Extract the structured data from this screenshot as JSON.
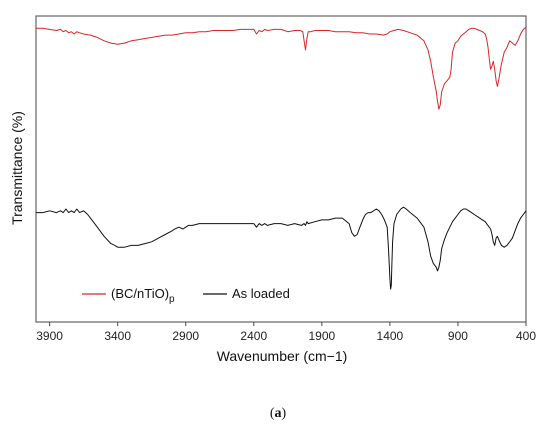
{
  "chart_data": {
    "type": "line",
    "xlabel": "Wavenumber (cm−1)",
    "ylabel": "Transmittance (%)",
    "xlim": [
      4000,
      400
    ],
    "x_reversed": true,
    "xticks": [
      3900,
      3400,
      2900,
      2400,
      1900,
      1400,
      900,
      400
    ],
    "y_ticks_shown": false,
    "legend_position": "bottom-left",
    "caption_letter": "a",
    "series": [
      {
        "name": "(BC/nTiO)p",
        "name_main": "(BC/nTiO)",
        "name_sub": "p",
        "color": "#d62728",
        "x": [
          4000,
          3950,
          3900,
          3850,
          3820,
          3800,
          3780,
          3760,
          3740,
          3720,
          3700,
          3680,
          3650,
          3600,
          3550,
          3500,
          3450,
          3400,
          3350,
          3300,
          3250,
          3200,
          3150,
          3100,
          3050,
          3000,
          2950,
          2900,
          2850,
          2800,
          2750,
          2700,
          2650,
          2600,
          2550,
          2500,
          2450,
          2400,
          2380,
          2360,
          2340,
          2320,
          2300,
          2250,
          2200,
          2150,
          2100,
          2060,
          2040,
          2030,
          2020,
          2010,
          2000,
          1980,
          1950,
          1900,
          1850,
          1800,
          1750,
          1700,
          1650,
          1600,
          1550,
          1500,
          1450,
          1420,
          1400,
          1370,
          1340,
          1300,
          1250,
          1200,
          1150,
          1120,
          1100,
          1080,
          1060,
          1050,
          1040,
          1030,
          1020,
          1000,
          980,
          960,
          950,
          940,
          920,
          900,
          880,
          860,
          840,
          820,
          800,
          780,
          760,
          740,
          720,
          700,
          690,
          680,
          670,
          660,
          650,
          640,
          630,
          620,
          610,
          600,
          580,
          560,
          540,
          520,
          500,
          480,
          460,
          440,
          420,
          400
        ],
        "y": [
          91,
          91,
          90,
          89,
          90,
          88,
          89,
          87,
          88,
          86,
          88,
          87,
          86,
          85,
          83,
          80,
          78,
          77,
          78,
          80,
          81,
          82,
          83,
          84,
          85,
          85,
          86,
          87,
          87,
          88,
          88,
          89,
          89,
          89,
          89,
          90,
          90,
          90,
          86,
          89,
          88,
          90,
          89,
          90,
          90,
          88,
          89,
          89,
          88,
          80,
          72,
          82,
          88,
          88,
          89,
          89,
          89,
          88,
          88,
          88,
          87,
          87,
          86,
          86,
          85,
          86,
          88,
          89,
          90,
          89,
          87,
          85,
          80,
          72,
          62,
          48,
          36,
          27,
          20,
          24,
          35,
          42,
          45,
          48,
          55,
          70,
          78,
          80,
          84,
          86,
          88,
          90,
          91,
          91,
          90,
          89,
          88,
          86,
          82,
          75,
          64,
          55,
          58,
          62,
          55,
          45,
          40,
          46,
          60,
          70,
          74,
          80,
          78,
          76,
          80,
          86,
          90,
          92
        ],
        "note": "values estimated from curve position; relative transmittance scale"
      },
      {
        "name": "As loaded",
        "color": "#111111",
        "x": [
          4000,
          3950,
          3900,
          3850,
          3820,
          3800,
          3780,
          3760,
          3740,
          3720,
          3700,
          3680,
          3650,
          3620,
          3600,
          3580,
          3550,
          3500,
          3450,
          3420,
          3400,
          3350,
          3300,
          3250,
          3200,
          3150,
          3100,
          3050,
          3000,
          2980,
          2950,
          2920,
          2900,
          2880,
          2850,
          2800,
          2750,
          2700,
          2650,
          2600,
          2550,
          2500,
          2450,
          2400,
          2380,
          2360,
          2340,
          2320,
          2300,
          2250,
          2200,
          2150,
          2100,
          2050,
          2030,
          2020,
          2010,
          2000,
          1950,
          1900,
          1850,
          1800,
          1750,
          1700,
          1680,
          1660,
          1640,
          1620,
          1600,
          1580,
          1560,
          1540,
          1520,
          1500,
          1480,
          1460,
          1440,
          1420,
          1410,
          1400,
          1395,
          1390,
          1385,
          1380,
          1370,
          1350,
          1320,
          1300,
          1280,
          1250,
          1200,
          1150,
          1120,
          1100,
          1080,
          1060,
          1050,
          1040,
          1030,
          1020,
          1000,
          980,
          960,
          940,
          920,
          900,
          880,
          860,
          840,
          820,
          800,
          780,
          760,
          740,
          720,
          700,
          680,
          660,
          650,
          640,
          630,
          620,
          610,
          600,
          580,
          560,
          540,
          520,
          500,
          480,
          460,
          440,
          420,
          400
        ],
        "y": [
          48,
          48,
          49,
          48,
          49,
          48,
          50,
          48,
          49,
          48,
          50,
          48,
          49,
          47,
          45,
          43,
          40,
          35,
          31,
          30,
          29,
          29,
          30,
          30,
          31,
          32,
          34,
          36,
          38,
          39,
          40,
          39,
          40,
          41,
          41,
          42,
          42,
          42,
          42,
          42,
          42,
          42,
          42,
          42,
          40,
          42,
          41,
          42,
          41,
          42,
          42,
          41,
          42,
          41,
          42,
          41,
          43,
          42,
          43,
          44,
          44,
          45,
          45,
          42,
          37,
          35,
          36,
          40,
          44,
          47,
          48,
          48,
          49,
          50,
          49,
          47,
          44,
          40,
          28,
          12,
          6,
          8,
          20,
          32,
          42,
          47,
          50,
          51,
          50,
          48,
          45,
          40,
          32,
          24,
          20,
          18,
          16,
          18,
          22,
          28,
          33,
          37,
          40,
          43,
          45,
          47,
          49,
          50,
          50,
          49,
          48,
          47,
          46,
          45,
          44,
          43,
          41,
          39,
          36,
          32,
          30,
          34,
          35,
          33,
          30,
          29,
          30,
          32,
          34,
          38,
          42,
          45,
          47,
          49
        ],
        "note": "values estimated from curve position; relative transmittance scale"
      }
    ]
  }
}
